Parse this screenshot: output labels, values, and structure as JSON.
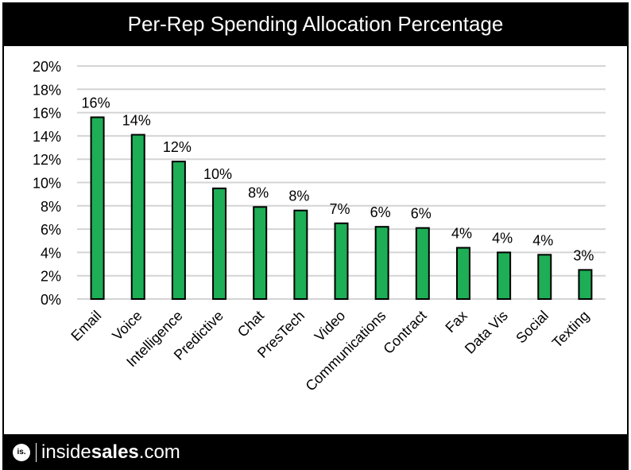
{
  "chart_data": {
    "type": "bar",
    "title": "Per-Rep Spending Allocation Percentage",
    "xlabel": "",
    "ylabel": "",
    "ylim": [
      0,
      20
    ],
    "yticks": [
      "0%",
      "2%",
      "4%",
      "6%",
      "8%",
      "10%",
      "12%",
      "14%",
      "16%",
      "18%",
      "20%"
    ],
    "ytick_values": [
      0,
      2,
      4,
      6,
      8,
      10,
      12,
      14,
      16,
      18,
      20
    ],
    "grid": true,
    "legend": "none",
    "bar_color": "#1DAE56",
    "categories": [
      "Email",
      "Voice",
      "Intelligence",
      "Predictive",
      "Chat",
      "PresTech",
      "Video",
      "Communications",
      "Contract",
      "Fax",
      "Data Vis",
      "Social",
      "Texting"
    ],
    "values": [
      15.6,
      14.1,
      11.8,
      9.5,
      7.9,
      7.6,
      6.5,
      6.2,
      6.1,
      4.4,
      4.0,
      3.8,
      2.5
    ],
    "data_labels": [
      "16%",
      "14%",
      "12%",
      "10%",
      "8%",
      "8%",
      "7%",
      "6%",
      "6%",
      "4%",
      "4%",
      "4%",
      "3%"
    ]
  },
  "footer": {
    "logo_badge": "is.",
    "brand_light": "inside",
    "brand_bold": "sales",
    "brand_suffix": ".com"
  }
}
